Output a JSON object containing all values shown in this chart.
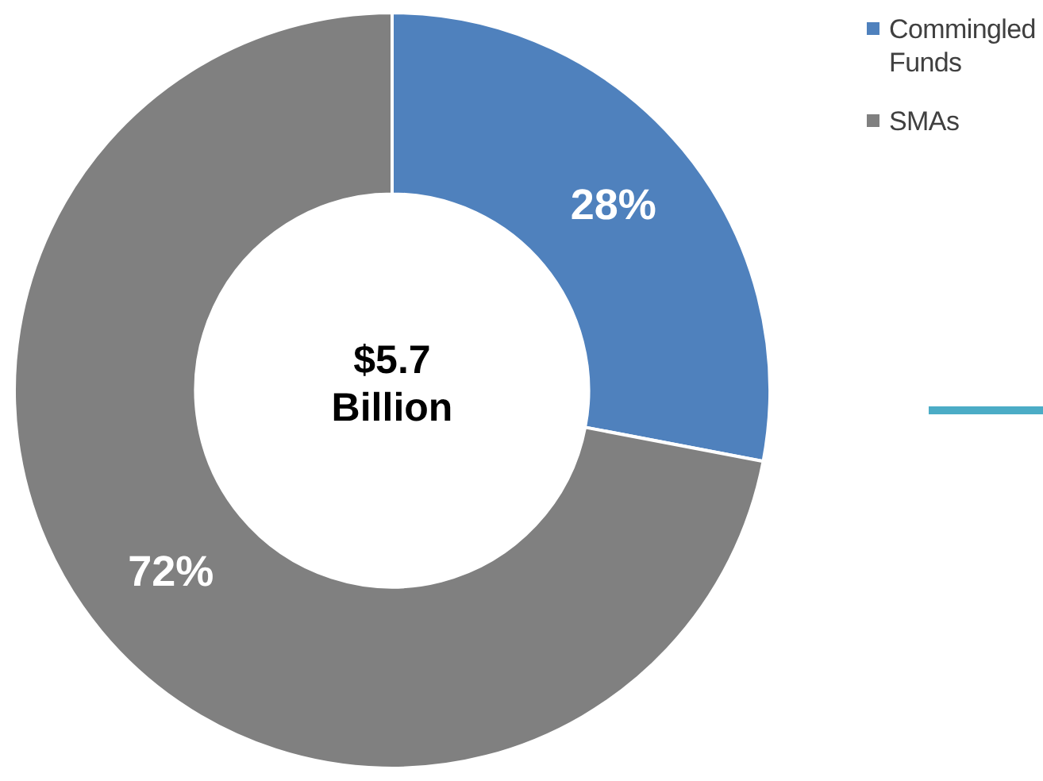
{
  "chart_data": {
    "type": "donut",
    "categories": [
      "Commingled Funds",
      "SMAs"
    ],
    "values": [
      28,
      72
    ],
    "colors": [
      "#4f81bd",
      "#808080"
    ],
    "value_labels": [
      "28%",
      "72%"
    ],
    "annotations": [
      "$5.7 Billion"
    ],
    "legend": "top right"
  }
}
